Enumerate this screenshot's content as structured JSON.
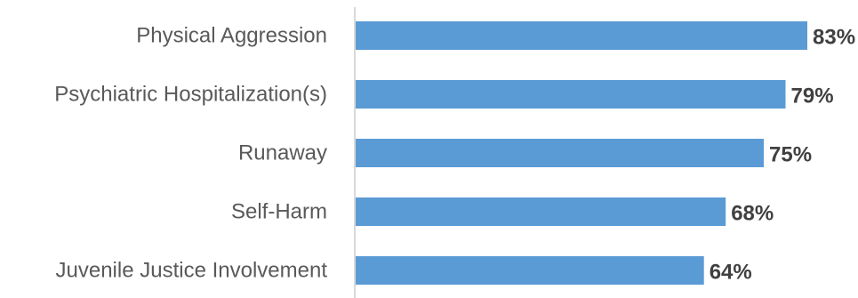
{
  "chart_data": {
    "type": "bar",
    "orientation": "horizontal",
    "title": "",
    "xlabel": "",
    "ylabel": "",
    "categories": [
      "Physical Aggression",
      "Psychiatric Hospitalization(s)",
      "Runaway",
      "Self-Harm",
      "Juvenile Justice Involvement"
    ],
    "values": [
      83,
      79,
      75,
      68,
      64
    ],
    "value_labels": [
      "83%",
      "79%",
      "75%",
      "68%",
      "64%"
    ],
    "unit": "%",
    "xlim": [
      0,
      83
    ],
    "grid": false,
    "legend": "none",
    "colors": {
      "bar": "#5b9bd5",
      "axis": "#d9d9d9",
      "category_text": "#595959",
      "value_text": "#404040"
    }
  }
}
